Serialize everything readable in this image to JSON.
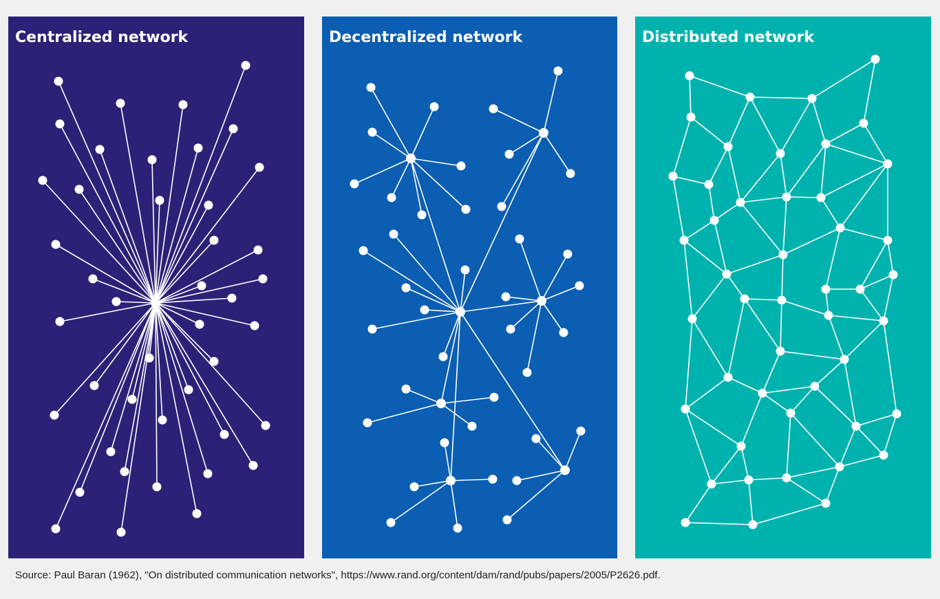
{
  "colors": {
    "background": "#f0f0f0",
    "centralized": "#2b2277",
    "decentralized": "#0b5eb1",
    "distributed": "#00b2ad",
    "node": "#ffffff",
    "edge": "#ffffff"
  },
  "panels": [
    {
      "key": "centralized",
      "title": "Centralized network"
    },
    {
      "key": "decentralized",
      "title": "Decentralized network"
    },
    {
      "key": "distributed",
      "title": "Distributed network"
    }
  ],
  "source_text": "Source: Paul Baran (1962), \"On distributed communication networks\", https://www.rand.org/content/dam/rand/pubs/papers/2005/P2626.pdf."
}
